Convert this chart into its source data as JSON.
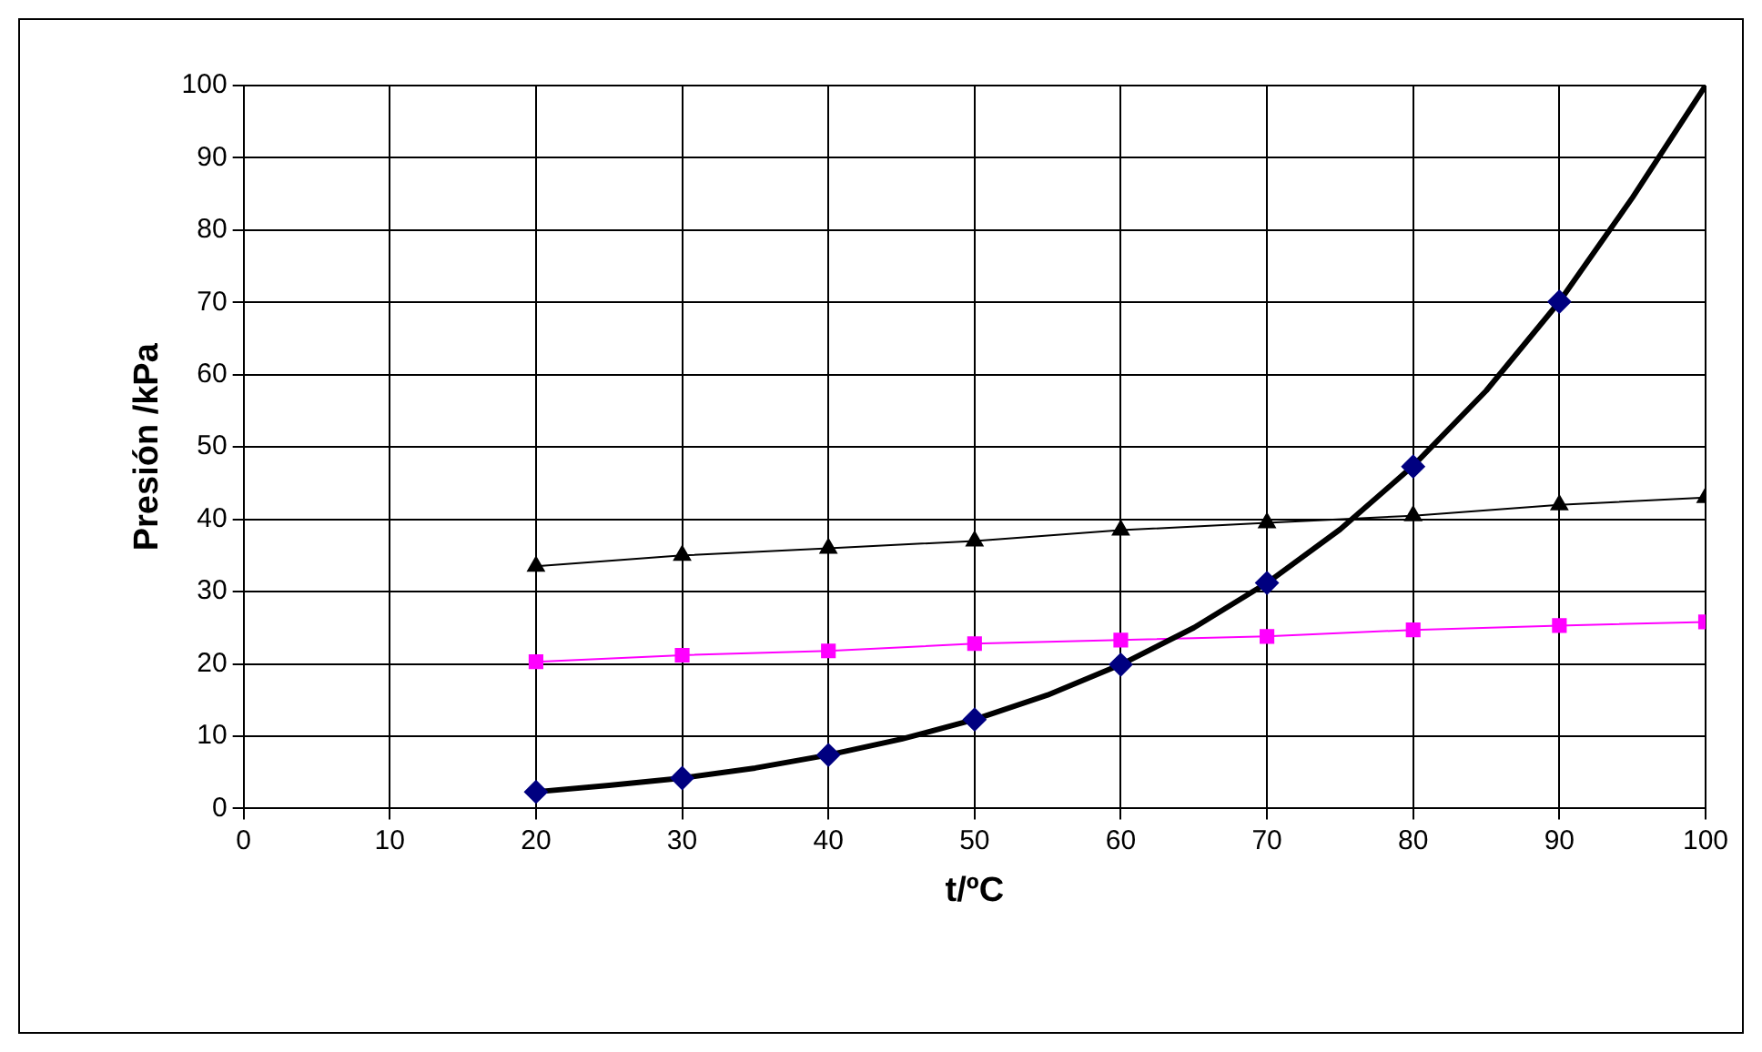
{
  "chart_data": {
    "type": "line",
    "xlabel": "t/ºC",
    "ylabel": "Presión /kPa",
    "xlim": [
      0,
      100
    ],
    "xticks": [
      0,
      10,
      20,
      30,
      40,
      50,
      60,
      70,
      80,
      90,
      100
    ],
    "ylim": [
      0,
      100
    ],
    "yticks": [
      0,
      10,
      20,
      30,
      40,
      50,
      60,
      70,
      80,
      90,
      100
    ],
    "grid": true,
    "legend": false,
    "series": [
      {
        "type": "line",
        "color": "#000000",
        "marker": "none",
        "x": [
          20,
          25,
          30,
          35,
          40,
          45,
          50,
          55,
          60,
          65,
          70,
          75,
          80,
          85,
          90,
          95,
          100
        ],
        "values": [
          2.3,
          3.2,
          4.2,
          5.6,
          7.4,
          9.6,
          12.3,
          15.7,
          19.9,
          25.0,
          31.2,
          38.6,
          47.4,
          57.8,
          70.1,
          84.5,
          100
        ]
      },
      {
        "type": "scatter",
        "color": "#000080",
        "marker": "diamond",
        "x": [
          20,
          30,
          40,
          50,
          60,
          70,
          80,
          90
        ],
        "values": [
          2.3,
          4.2,
          7.4,
          12.3,
          19.9,
          31.2,
          47.3,
          70.1
        ]
      },
      {
        "type": "line",
        "color": "#000000",
        "marker": "triangle",
        "x": [
          20,
          30,
          40,
          50,
          60,
          70,
          80,
          90,
          100
        ],
        "values": [
          33.5,
          35,
          36,
          37,
          38.5,
          39.5,
          40.5,
          42,
          43
        ]
      },
      {
        "type": "line",
        "color": "#ff00ff",
        "marker": "square",
        "x": [
          20,
          30,
          40,
          50,
          60,
          70,
          80,
          90,
          100
        ],
        "values": [
          20.3,
          21.2,
          21.8,
          22.8,
          23.3,
          23.8,
          24.7,
          25.3,
          25.8
        ]
      }
    ]
  }
}
